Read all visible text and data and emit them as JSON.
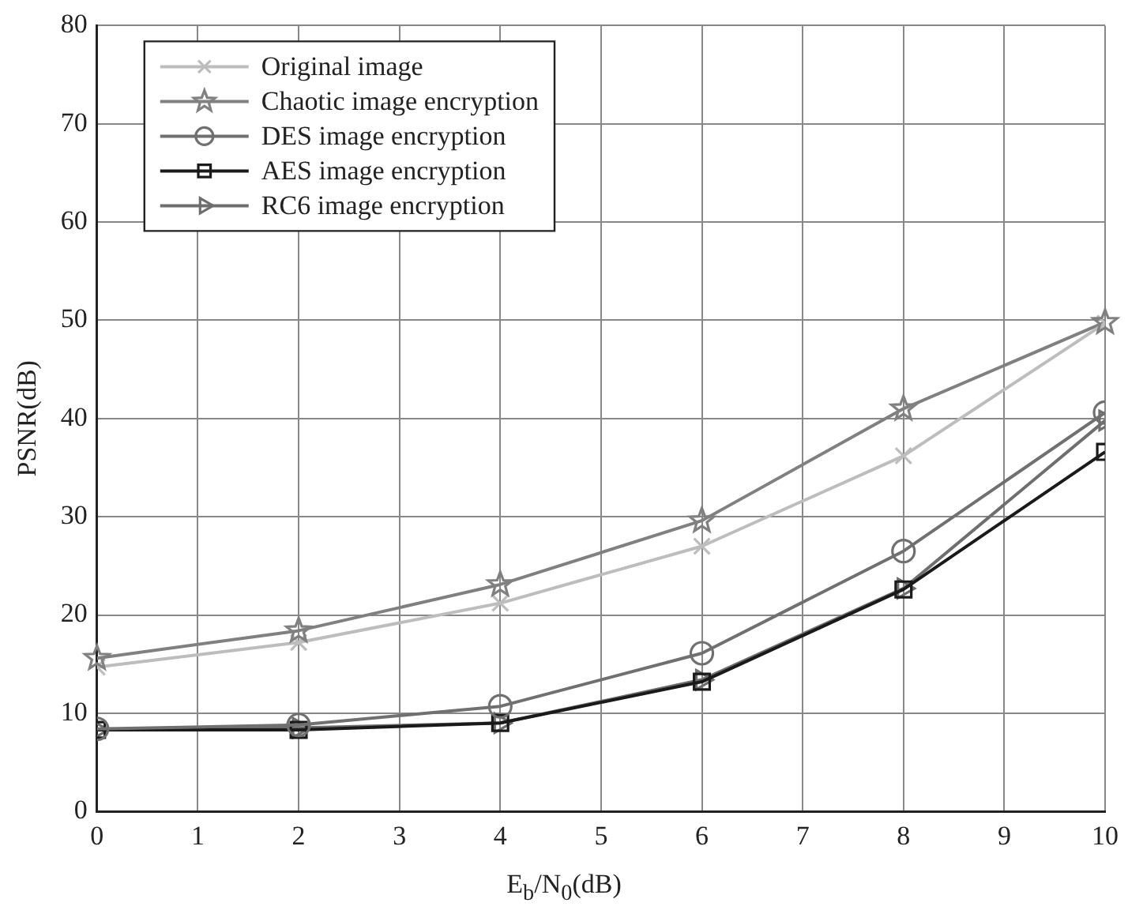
{
  "chart_data": {
    "type": "line",
    "xlabel": "E$_{b}$/N$_{0}$(dB)",
    "ylabel": "PSNR(dB)",
    "x": [
      0,
      2,
      4,
      6,
      8,
      10
    ],
    "xlim": [
      0,
      10
    ],
    "xticks": [
      0,
      1,
      2,
      3,
      4,
      5,
      6,
      7,
      8,
      9,
      10
    ],
    "ylim": [
      0,
      80
    ],
    "yticks": [
      0,
      10,
      20,
      30,
      40,
      50,
      60,
      70,
      80
    ],
    "grid": true,
    "legend": "top left",
    "line_style": "solid",
    "series": [
      {
        "name": "Original image",
        "color": "#bdbdbd",
        "marker": "cross",
        "values": [
          14.7,
          17.2,
          21.2,
          27,
          36.2,
          49.7
        ]
      },
      {
        "name": "Chaotic image encryption",
        "color": "#808080",
        "marker": "star",
        "values": [
          15.6,
          18.4,
          23.1,
          29.6,
          41,
          49.8
        ]
      },
      {
        "name": "DES image encryption",
        "color": "#707070",
        "marker": "circle",
        "values": [
          8.4,
          8.8,
          10.7,
          16.1,
          26.5,
          40.6
        ]
      },
      {
        "name": "AES image encryption",
        "color": "#1a1a1a",
        "marker": "square",
        "values": [
          8.3,
          8.3,
          9.0,
          13.2,
          22.6,
          36.6
        ]
      },
      {
        "name": "RC6 image encryption",
        "color": "#6e6e6e",
        "marker": "triangle",
        "values": [
          8.3,
          8.5,
          9.0,
          13.4,
          22.7,
          39.8
        ]
      }
    ]
  }
}
